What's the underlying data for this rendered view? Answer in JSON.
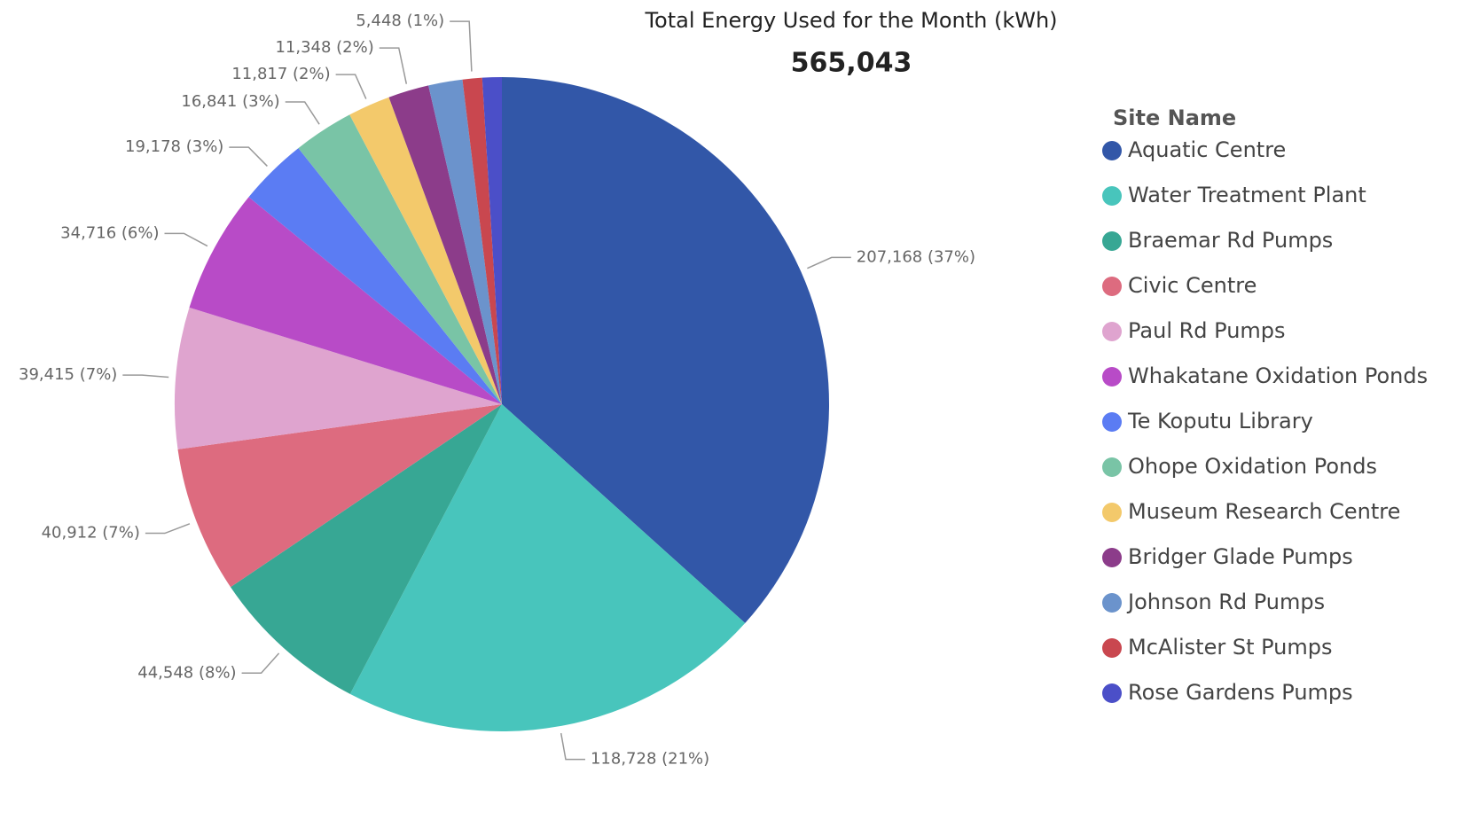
{
  "chart_data": {
    "type": "pie",
    "title": "Total Energy Used for the Month (kWh)",
    "subtitle": "565,043",
    "legend_title": "Site Name",
    "legend": "right",
    "categories": [
      "Aquatic Centre",
      "Water Treatment Plant",
      "Braemar Rd Pumps",
      "Civic Centre",
      "Paul Rd Pumps",
      "Whakatane Oxidation Ponds",
      "Te Koputu Library",
      "Ohope Oxidation Ponds",
      "Museum Research Centre",
      "Bridger Glade Pumps",
      "Johnson Rd Pumps",
      "McAlister St Pumps",
      "Rose Gardens Pumps"
    ],
    "values": [
      207168,
      118728,
      44548,
      40912,
      39415,
      34716,
      19178,
      16841,
      11817,
      11348,
      9500,
      5448,
      5424
    ],
    "value_labels": [
      "207,168 (37%)",
      "118,728 (21%)",
      "44,548 (8%)",
      "40,912 (7%)",
      "39,415 (7%)",
      "34,716 (6%)",
      "19,178 (3%)",
      "16,841 (3%)",
      "11,817 (2%)",
      "11,348 (2%)",
      null,
      "5,448 (1%)",
      null
    ],
    "colors": [
      "#3257a8",
      "#48c5bc",
      "#37a794",
      "#dd6b7f",
      "#dfa4cf",
      "#b84bc7",
      "#5b7cf3",
      "#79c4a6",
      "#f3c96b",
      "#8c3c8a",
      "#6b93cc",
      "#c9474f",
      "#4b4fc8"
    ]
  }
}
